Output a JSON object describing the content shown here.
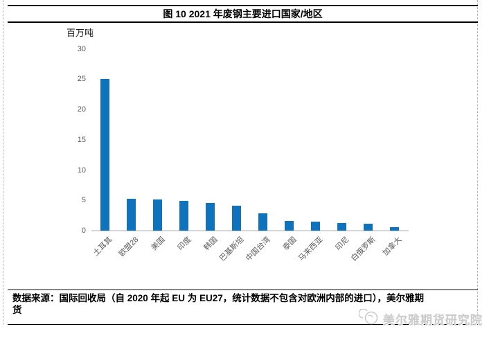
{
  "figure": {
    "title": "图 10 2021 年废钢主要进口国家/地区"
  },
  "chart_data": {
    "type": "bar",
    "title": "图 10 2021 年废钢主要进口国家/地区",
    "unit_label": "百万吨",
    "ylabel": "百万吨",
    "xlabel": "",
    "categories": [
      "土耳其",
      "欧盟28",
      "美国",
      "印度",
      "韩国",
      "巴基斯坦",
      "中国台湾",
      "泰国",
      "马来西亚",
      "印尼",
      "白俄罗斯",
      "加拿大"
    ],
    "values": [
      25.0,
      5.3,
      5.1,
      4.9,
      4.6,
      4.1,
      2.9,
      1.6,
      1.5,
      1.3,
      1.1,
      0.6
    ],
    "ylim": [
      0,
      30
    ],
    "yticks": [
      0,
      5,
      10,
      15,
      20,
      25,
      30
    ],
    "grid": false,
    "legend": false
  },
  "source": {
    "lines": [
      "数据来源：国际回收局（自 2020 年起 EU 为 EU27，统计数据不包含对欧洲内部的进口），美尔雅期",
      "货"
    ]
  },
  "watermark": {
    "text": "美尔雅期货研究院",
    "logo": "mayer-logo-icon"
  },
  "colors": {
    "bar": "#0E72BC",
    "axis_line": "#D6D6D6",
    "tick_text": "#595959",
    "border_black": "#000000",
    "dashed_border": "#B3B3B3",
    "watermark_text": "#CBCBCB"
  }
}
